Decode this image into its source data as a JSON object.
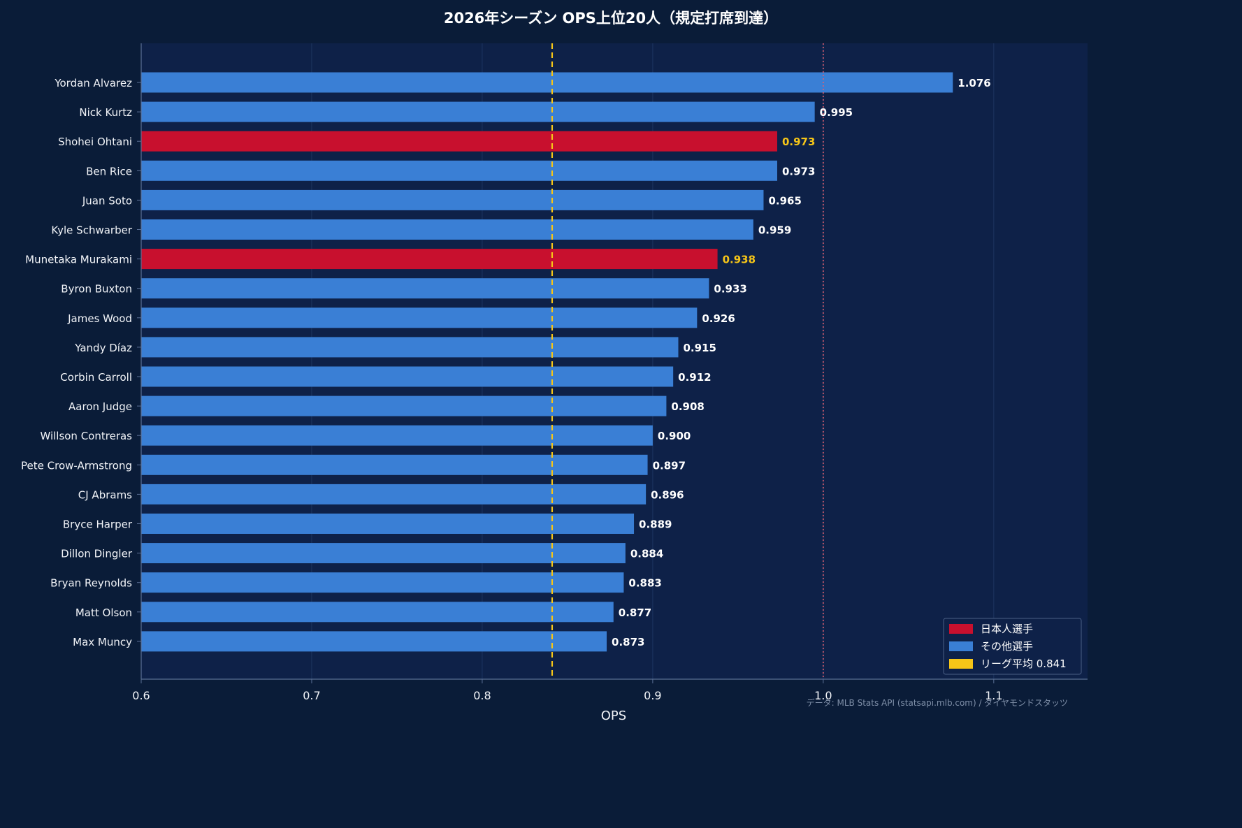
{
  "chart_data": {
    "type": "bar",
    "orientation": "horizontal",
    "title": "2026年シーズン OPS上位20人（規定打席到達）",
    "xlabel": "OPS",
    "xlim": [
      0.6,
      1.155
    ],
    "xticks": [
      "0.6",
      "0.7",
      "0.8",
      "0.9",
      "1.0",
      "1.1"
    ],
    "grid": true,
    "legend_position": "bottom-right",
    "categories": [
      "Yordan Alvarez",
      "Nick Kurtz",
      "Shohei Ohtani",
      "Ben Rice",
      "Juan Soto",
      "Kyle Schwarber",
      "Munetaka Murakami",
      "Byron Buxton",
      "James Wood",
      "Yandy Díaz",
      "Corbin Carroll",
      "Aaron Judge",
      "Willson Contreras",
      "Pete Crow-Armstrong",
      "CJ Abrams",
      "Bryce Harper",
      "Dillon Dingler",
      "Bryan Reynolds",
      "Matt Olson",
      "Max Muncy"
    ],
    "values": [
      1.076,
      0.995,
      0.973,
      0.973,
      0.965,
      0.959,
      0.938,
      0.933,
      0.926,
      0.915,
      0.912,
      0.908,
      0.9,
      0.897,
      0.896,
      0.889,
      0.884,
      0.883,
      0.877,
      0.873
    ],
    "value_labels": [
      "1.076",
      "0.995",
      "0.973",
      "0.973",
      "0.965",
      "0.959",
      "0.938",
      "0.933",
      "0.926",
      "0.915",
      "0.912",
      "0.908",
      "0.900",
      "0.897",
      "0.896",
      "0.889",
      "0.884",
      "0.883",
      "0.877",
      "0.873"
    ],
    "groups": [
      "other",
      "other",
      "japanese",
      "other",
      "other",
      "other",
      "japanese",
      "other",
      "other",
      "other",
      "other",
      "other",
      "other",
      "other",
      "other",
      "other",
      "other",
      "other",
      "other",
      "other"
    ],
    "reference_lines": [
      {
        "value": 0.841,
        "style": "dashed",
        "color": "#f5c518"
      },
      {
        "value": 1.0,
        "style": "dotted",
        "color": "#e06070"
      }
    ],
    "legend": [
      {
        "label": "日本人選手",
        "color": "#c8102e"
      },
      {
        "label": "その他選手",
        "color": "#3a7fd5"
      },
      {
        "label": "リーグ平均 0.841",
        "color": "#f5c518"
      }
    ],
    "source_note": "データ: MLB Stats API (statsapi.mlb.com) / ダイヤモンドスタッツ"
  },
  "colors": {
    "background": "#0a1c38",
    "plot_background": "#0e2148",
    "japanese_bar": "#c8102e",
    "other_bar": "#3a7fd5",
    "japanese_value_text": "#f5c518",
    "other_value_text": "#ffffff",
    "grid": "#1d3560",
    "axis": "#5a6f95"
  }
}
